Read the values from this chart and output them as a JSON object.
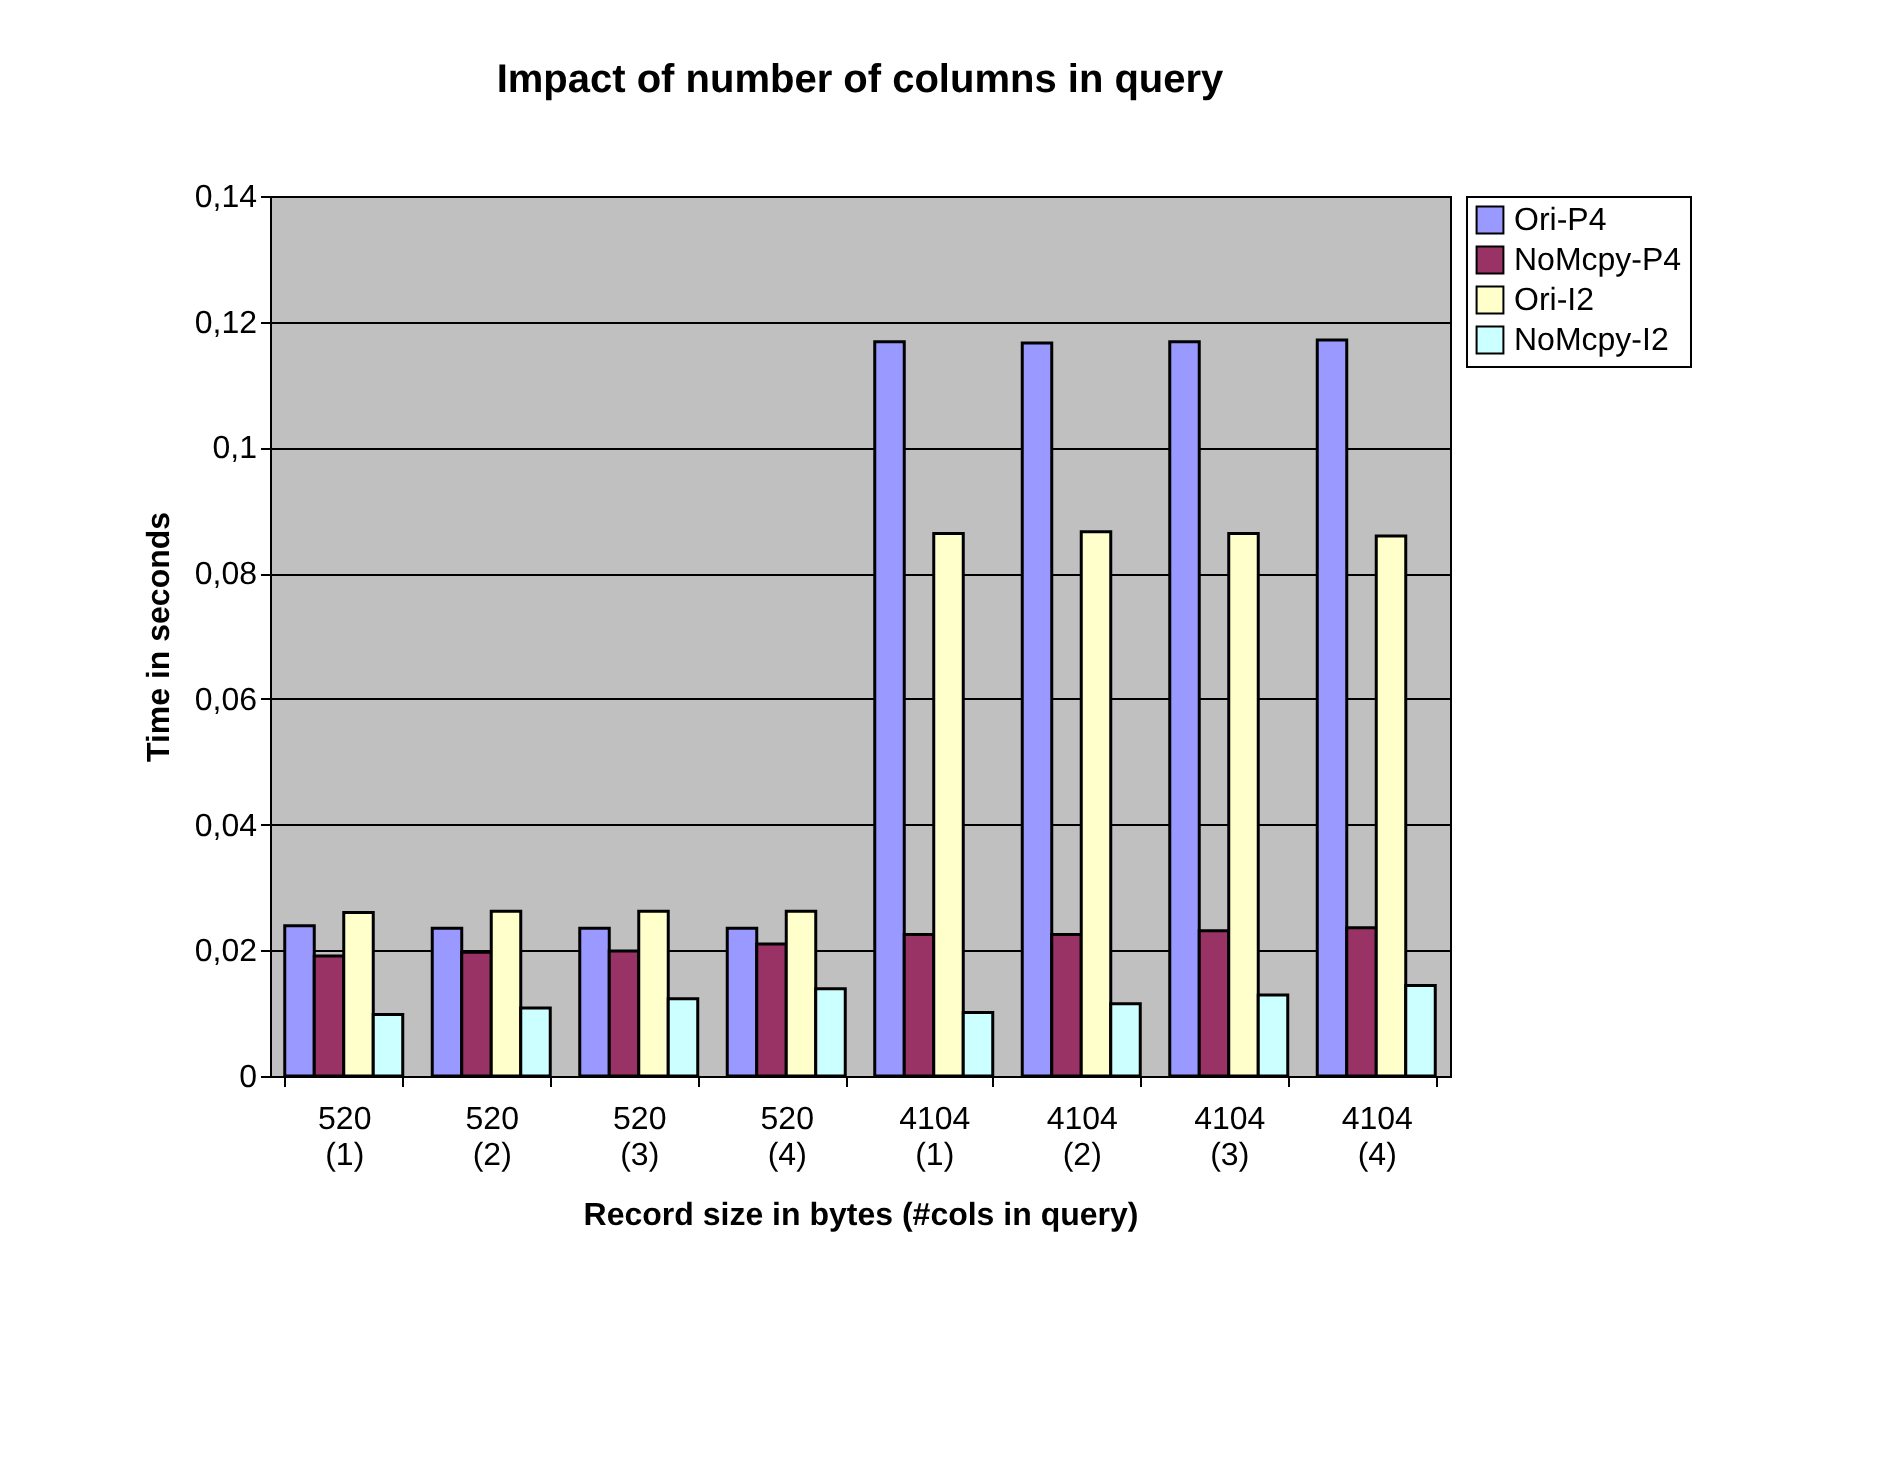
{
  "chart_data": {
    "type": "bar",
    "title": "Impact of number of columns in query",
    "xlabel": "Record size in bytes (#cols in query)",
    "ylabel": "Time in seconds",
    "categories": [
      "520 (1)",
      "520 (2)",
      "520 (3)",
      "520 (4)",
      "4104 (1)",
      "4104 (2)",
      "4104 (3)",
      "4104 (4)"
    ],
    "series": [
      {
        "name": "Ori-P4",
        "color": "#9999ff",
        "values": [
          0.0239,
          0.0235,
          0.0235,
          0.0235,
          0.1168,
          0.1166,
          0.1168,
          0.1171
        ]
      },
      {
        "name": "NoMcpy-P4",
        "color": "#993366",
        "values": [
          0.0191,
          0.0197,
          0.0199,
          0.021,
          0.0225,
          0.0225,
          0.0231,
          0.0236
        ]
      },
      {
        "name": "Ori-I2",
        "color": "#ffffcc",
        "values": [
          0.026,
          0.0262,
          0.0262,
          0.0262,
          0.0863,
          0.0866,
          0.0863,
          0.0859
        ]
      },
      {
        "name": "NoMcpy-I2",
        "color": "#ccffff",
        "values": [
          0.0098,
          0.0108,
          0.0123,
          0.0139,
          0.0101,
          0.0115,
          0.0129,
          0.0144
        ]
      }
    ],
    "ylim": [
      0,
      0.14
    ],
    "yticks": [
      0,
      {
        "value": 0.02,
        "label": "0,02"
      },
      {
        "value": 0.04,
        "label": "0,04"
      },
      {
        "value": 0.06,
        "label": "0,06"
      },
      {
        "value": 0.08,
        "label": "0,08"
      },
      {
        "value": 0.1,
        "label": "0,1"
      },
      {
        "value": 0.12,
        "label": "0,12"
      },
      {
        "value": 0.14,
        "label": "0,14"
      }
    ],
    "grid": "y",
    "legend": "right"
  }
}
